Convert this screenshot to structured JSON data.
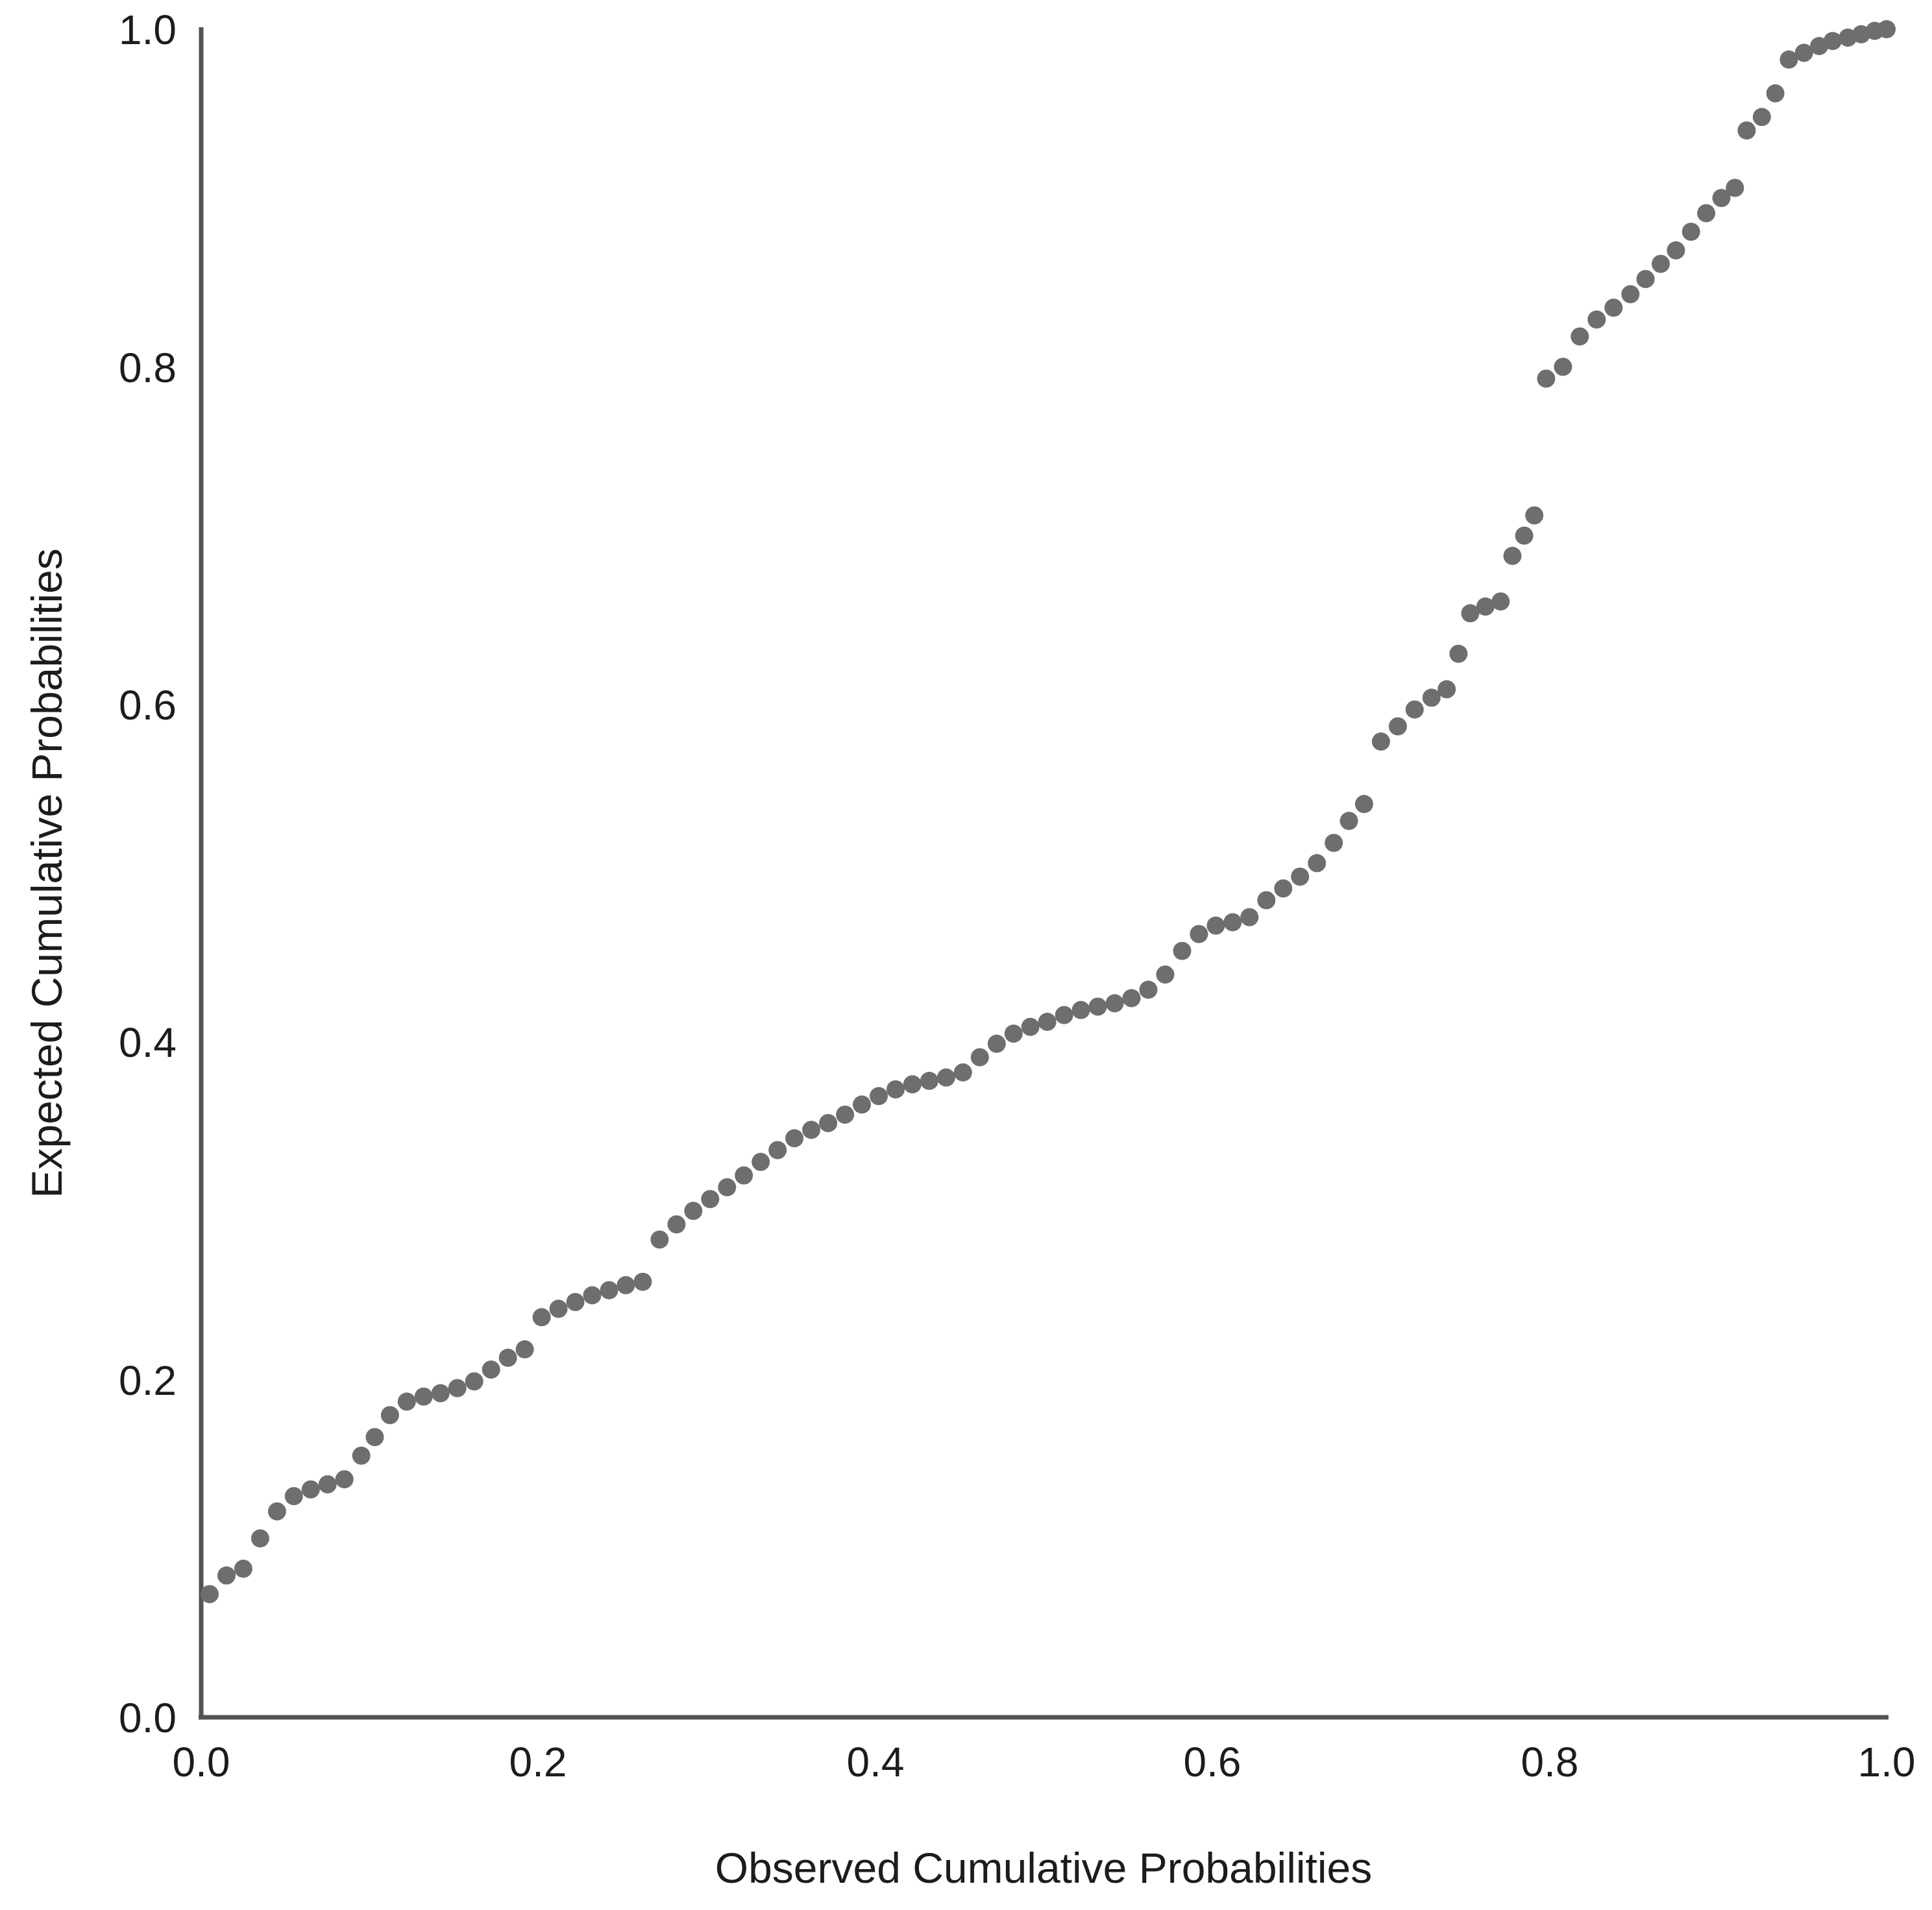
{
  "page": {
    "background": "#ffffff"
  },
  "chart_data": {
    "type": "scatter",
    "title": "",
    "xlabel": "Observed Cumulative Probabilities",
    "ylabel": "Expected Cumulative Probabilities",
    "xlim": [
      0.0,
      1.0
    ],
    "ylim": [
      0.0,
      1.0
    ],
    "x_ticks": [
      "0.0",
      "0.2",
      "0.4",
      "0.6",
      "0.8",
      "1.0"
    ],
    "y_ticks": [
      "0.0",
      "0.2",
      "0.4",
      "0.6",
      "0.8",
      "1.0"
    ],
    "grid": false,
    "legend": "none",
    "point_color": "#6e6e6e",
    "axis_color": "#545454",
    "text_color": "#1c1c1c",
    "points": [
      [
        0.005,
        0.073
      ],
      [
        0.015,
        0.084
      ],
      [
        0.025,
        0.088
      ],
      [
        0.035,
        0.106
      ],
      [
        0.045,
        0.122
      ],
      [
        0.055,
        0.131
      ],
      [
        0.065,
        0.135
      ],
      [
        0.075,
        0.138
      ],
      [
        0.085,
        0.141
      ],
      [
        0.095,
        0.155
      ],
      [
        0.103,
        0.166
      ],
      [
        0.112,
        0.179
      ],
      [
        0.122,
        0.187
      ],
      [
        0.132,
        0.19
      ],
      [
        0.142,
        0.192
      ],
      [
        0.152,
        0.195
      ],
      [
        0.162,
        0.199
      ],
      [
        0.172,
        0.206
      ],
      [
        0.182,
        0.213
      ],
      [
        0.192,
        0.218
      ],
      [
        0.202,
        0.237
      ],
      [
        0.212,
        0.242
      ],
      [
        0.222,
        0.246
      ],
      [
        0.232,
        0.25
      ],
      [
        0.242,
        0.253
      ],
      [
        0.252,
        0.256
      ],
      [
        0.262,
        0.258
      ],
      [
        0.272,
        0.283
      ],
      [
        0.282,
        0.292
      ],
      [
        0.292,
        0.3
      ],
      [
        0.302,
        0.307
      ],
      [
        0.312,
        0.314
      ],
      [
        0.322,
        0.321
      ],
      [
        0.332,
        0.329
      ],
      [
        0.342,
        0.336
      ],
      [
        0.352,
        0.343
      ],
      [
        0.362,
        0.348
      ],
      [
        0.372,
        0.352
      ],
      [
        0.382,
        0.357
      ],
      [
        0.392,
        0.363
      ],
      [
        0.402,
        0.368
      ],
      [
        0.412,
        0.372
      ],
      [
        0.422,
        0.375
      ],
      [
        0.432,
        0.377
      ],
      [
        0.442,
        0.379
      ],
      [
        0.452,
        0.382
      ],
      [
        0.462,
        0.391
      ],
      [
        0.472,
        0.399
      ],
      [
        0.482,
        0.405
      ],
      [
        0.492,
        0.409
      ],
      [
        0.502,
        0.412
      ],
      [
        0.512,
        0.416
      ],
      [
        0.522,
        0.419
      ],
      [
        0.532,
        0.421
      ],
      [
        0.542,
        0.423
      ],
      [
        0.552,
        0.426
      ],
      [
        0.562,
        0.431
      ],
      [
        0.572,
        0.44
      ],
      [
        0.582,
        0.454
      ],
      [
        0.592,
        0.464
      ],
      [
        0.602,
        0.469
      ],
      [
        0.612,
        0.471
      ],
      [
        0.622,
        0.474
      ],
      [
        0.632,
        0.484
      ],
      [
        0.642,
        0.491
      ],
      [
        0.652,
        0.498
      ],
      [
        0.662,
        0.506
      ],
      [
        0.672,
        0.518
      ],
      [
        0.681,
        0.531
      ],
      [
        0.69,
        0.541
      ],
      [
        0.7,
        0.578
      ],
      [
        0.71,
        0.587
      ],
      [
        0.72,
        0.597
      ],
      [
        0.73,
        0.604
      ],
      [
        0.739,
        0.609
      ],
      [
        0.746,
        0.63
      ],
      [
        0.753,
        0.654
      ],
      [
        0.762,
        0.658
      ],
      [
        0.771,
        0.661
      ],
      [
        0.778,
        0.688
      ],
      [
        0.785,
        0.7
      ],
      [
        0.791,
        0.712
      ],
      [
        0.798,
        0.793
      ],
      [
        0.808,
        0.8
      ],
      [
        0.818,
        0.818
      ],
      [
        0.828,
        0.828
      ],
      [
        0.838,
        0.835
      ],
      [
        0.848,
        0.843
      ],
      [
        0.857,
        0.852
      ],
      [
        0.866,
        0.861
      ],
      [
        0.875,
        0.869
      ],
      [
        0.884,
        0.88
      ],
      [
        0.893,
        0.891
      ],
      [
        0.902,
        0.9
      ],
      [
        0.91,
        0.906
      ],
      [
        0.917,
        0.94
      ],
      [
        0.926,
        0.948
      ],
      [
        0.934,
        0.962
      ],
      [
        0.942,
        0.982
      ],
      [
        0.951,
        0.986
      ],
      [
        0.96,
        0.99
      ],
      [
        0.968,
        0.993
      ],
      [
        0.977,
        0.995
      ],
      [
        0.985,
        0.997
      ],
      [
        0.993,
        0.999
      ],
      [
        1.0,
        1.0
      ]
    ]
  }
}
